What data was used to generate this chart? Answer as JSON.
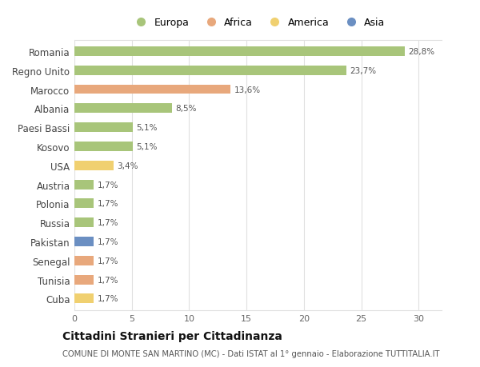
{
  "categories": [
    "Romania",
    "Regno Unito",
    "Marocco",
    "Albania",
    "Paesi Bassi",
    "Kosovo",
    "USA",
    "Austria",
    "Polonia",
    "Russia",
    "Pakistan",
    "Senegal",
    "Tunisia",
    "Cuba"
  ],
  "values": [
    28.8,
    23.7,
    13.6,
    8.5,
    5.1,
    5.1,
    3.4,
    1.7,
    1.7,
    1.7,
    1.7,
    1.7,
    1.7,
    1.7
  ],
  "labels": [
    "28,8%",
    "23,7%",
    "13,6%",
    "8,5%",
    "5,1%",
    "5,1%",
    "3,4%",
    "1,7%",
    "1,7%",
    "1,7%",
    "1,7%",
    "1,7%",
    "1,7%",
    "1,7%"
  ],
  "bar_colors": [
    "#a8c57a",
    "#a8c57a",
    "#e8a87c",
    "#a8c57a",
    "#a8c57a",
    "#a8c57a",
    "#f0d070",
    "#a8c57a",
    "#a8c57a",
    "#a8c57a",
    "#6b8fc2",
    "#e8a87c",
    "#e8a87c",
    "#f0d070"
  ],
  "legend_labels": [
    "Europa",
    "Africa",
    "America",
    "Asia"
  ],
  "legend_colors": [
    "#a8c57a",
    "#e8a87c",
    "#f0d070",
    "#6b8fc2"
  ],
  "title": "Cittadini Stranieri per Cittadinanza",
  "subtitle": "COMUNE DI MONTE SAN MARTINO (MC) - Dati ISTAT al 1° gennaio - Elaborazione TUTTITALIA.IT",
  "xlim": [
    0,
    32
  ],
  "xticks": [
    0,
    5,
    10,
    15,
    20,
    25,
    30
  ],
  "background_color": "#ffffff",
  "grid_color": "#e0e0e0"
}
